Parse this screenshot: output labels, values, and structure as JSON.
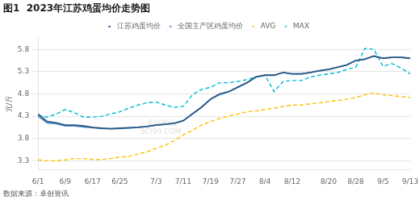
{
  "chart_data": {
    "type": "line",
    "title": "图1  2023年江苏鸡蛋均价走势图",
    "ylabel": "元/斤",
    "source": "数据来源：卓创资讯",
    "annotations": [
      {
        "text": "卓创资讯\nSCI99.COM"
      }
    ],
    "categories": [
      "6/1",
      null,
      null,
      "6/9",
      null,
      null,
      "6/17",
      null,
      null,
      "6/25",
      null,
      null,
      null,
      "7/3",
      null,
      null,
      "7/11",
      null,
      null,
      "7/19",
      null,
      null,
      "7/27",
      null,
      null,
      "8/4",
      null,
      null,
      "8/12",
      null,
      null,
      null,
      "8/20",
      null,
      null,
      "8/28",
      null,
      null,
      "9/5",
      null,
      null,
      "9/13"
    ],
    "series": [
      {
        "name": "江苏鸡蛋均价",
        "color": "#2a5783",
        "line_style": "solid",
        "values": [
          4.35,
          4.18,
          4.15,
          4.1,
          4.1,
          4.08,
          4.05,
          4.03,
          4.02,
          4.03,
          4.04,
          4.05,
          4.07,
          4.1,
          4.12,
          4.14,
          4.2,
          4.35,
          4.5,
          4.68,
          4.8,
          4.85,
          4.95,
          5.05,
          5.18,
          5.22,
          5.22,
          5.28,
          5.25,
          5.25,
          5.28,
          5.32,
          5.35,
          5.4,
          5.45,
          5.55,
          5.58,
          5.65,
          5.6,
          5.62,
          5.62,
          5.6
        ]
      },
      {
        "name": "全国主产区鸡蛋均价",
        "color": "#5b9bd5",
        "line_style": "solid",
        "values": [
          4.3,
          4.15,
          4.13,
          4.08,
          4.08,
          4.06,
          4.04,
          4.02,
          4.02,
          4.02,
          4.03,
          4.05,
          4.07,
          4.1,
          4.12,
          4.14,
          4.2,
          4.35,
          4.5,
          4.68,
          4.78,
          4.85,
          4.95,
          5.05,
          5.18,
          5.22,
          5.22,
          5.28,
          5.25,
          5.25,
          5.28,
          5.32,
          5.35,
          5.4,
          5.45,
          5.55,
          5.58,
          5.65,
          5.6,
          5.62,
          5.62,
          5.6
        ]
      },
      {
        "name": "AVG",
        "color": "#ffc000",
        "line_style": "dashed",
        "values": [
          3.32,
          3.3,
          3.3,
          3.32,
          3.35,
          3.35,
          3.33,
          3.33,
          3.35,
          3.38,
          3.4,
          3.45,
          3.5,
          3.58,
          3.65,
          3.75,
          3.88,
          3.98,
          4.1,
          4.18,
          4.25,
          4.3,
          4.35,
          4.4,
          4.42,
          4.45,
          4.48,
          4.52,
          4.55,
          4.55,
          4.58,
          4.6,
          4.63,
          4.65,
          4.68,
          4.72,
          4.78,
          4.82,
          4.78,
          4.76,
          4.74,
          4.72
        ]
      },
      {
        "name": "MAX",
        "color": "#00bcd4",
        "line_style": "dashed",
        "values": [
          4.32,
          4.28,
          4.35,
          4.45,
          4.38,
          4.28,
          4.28,
          4.3,
          4.35,
          4.4,
          4.48,
          4.55,
          4.6,
          4.62,
          4.55,
          4.5,
          4.52,
          4.78,
          4.9,
          4.95,
          5.05,
          5.05,
          5.08,
          5.12,
          5.18,
          5.22,
          4.85,
          5.08,
          5.1,
          5.1,
          5.18,
          5.22,
          5.25,
          5.28,
          5.35,
          5.4,
          5.82,
          5.8,
          5.42,
          5.48,
          5.38,
          5.25
        ]
      }
    ],
    "ylim": [
      3.1,
      6.05
    ],
    "yticks": [
      3.3,
      3.8,
      4.3,
      4.8,
      5.3,
      5.8
    ],
    "grid": "y",
    "legend": "top"
  }
}
